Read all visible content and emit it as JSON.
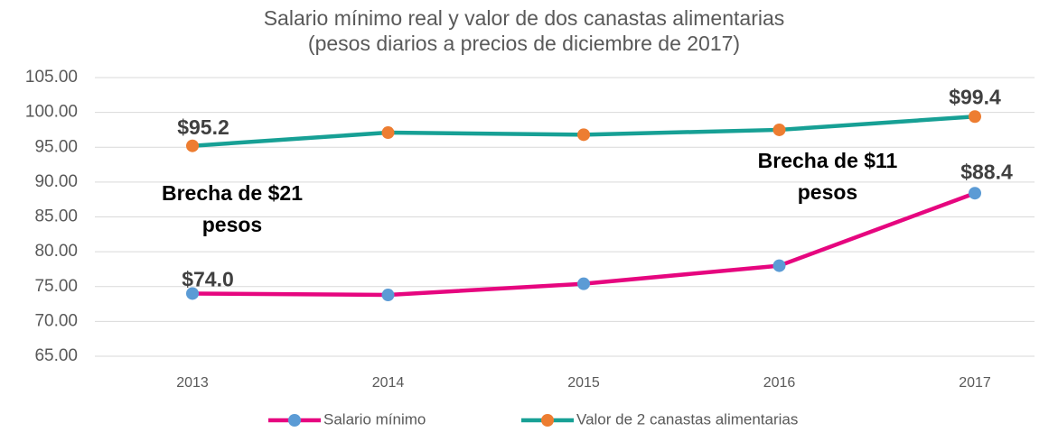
{
  "chart_data": {
    "type": "line",
    "title": [
      "Salario mínimo real y valor de dos canastas alimentarias",
      "(pesos diarios a precios de diciembre de 2017)"
    ],
    "categories": [
      "2013",
      "2014",
      "2015",
      "2016",
      "2017"
    ],
    "series": [
      {
        "name": "Salario mínimo",
        "color": "#e6067f",
        "marker_color": "#5b9bd5",
        "values": [
          74.0,
          73.8,
          75.4,
          78.0,
          88.4
        ],
        "value_labels": [
          "$74.0",
          null,
          null,
          null,
          "$88.4"
        ]
      },
      {
        "name": "Valor de 2 canastas alimentarias",
        "color": "#17a095",
        "marker_color": "#ed7d31",
        "values": [
          95.2,
          97.1,
          96.8,
          97.5,
          99.4
        ],
        "value_labels": [
          "$95.2",
          null,
          null,
          null,
          "$99.4"
        ]
      }
    ],
    "annotations": [
      [
        "Brecha de $21",
        "pesos"
      ],
      [
        "Brecha de $11",
        "pesos"
      ]
    ],
    "ylim": [
      65,
      105
    ],
    "yticks": [
      {
        "value": 65,
        "label": "65.00"
      },
      {
        "value": 70,
        "label": "70.00"
      },
      {
        "value": 75,
        "label": "75.00"
      },
      {
        "value": 80,
        "label": "80.00"
      },
      {
        "value": 85,
        "label": "85.00"
      },
      {
        "value": 90,
        "label": "90.00"
      },
      {
        "value": 95,
        "label": "95.00"
      },
      {
        "value": 100,
        "label": "100.00"
      },
      {
        "value": 105,
        "label": "105.00"
      }
    ],
    "grid": true,
    "legend": "bottom"
  }
}
